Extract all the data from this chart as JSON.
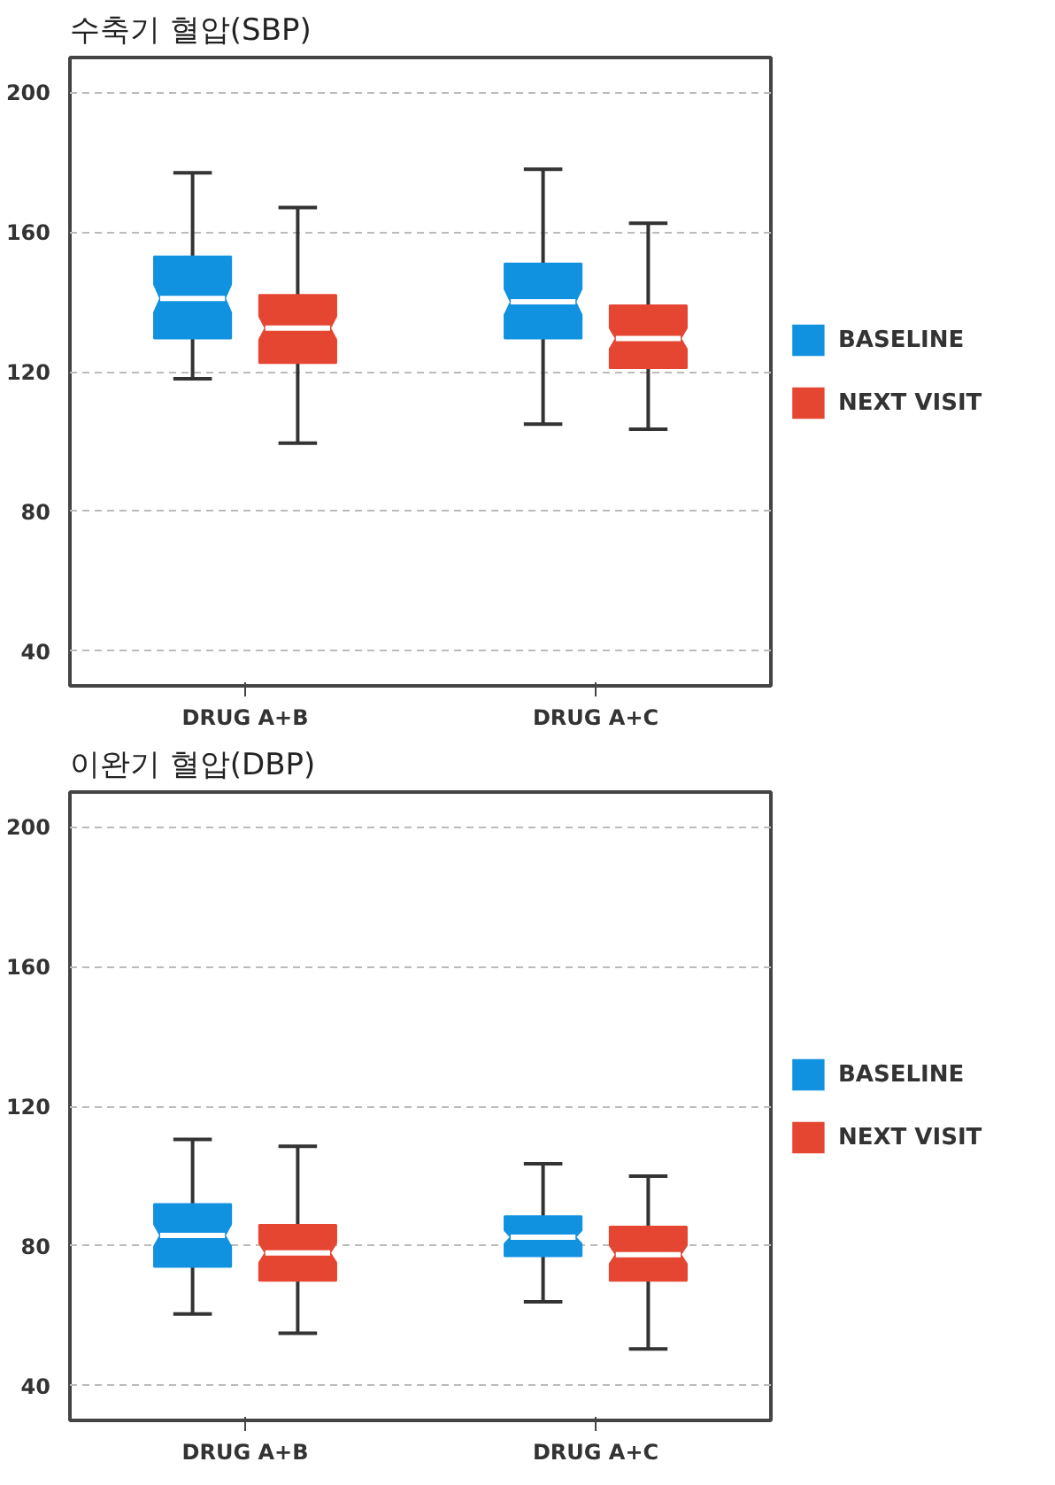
{
  "chart_data": [
    {
      "type": "box",
      "title": "수축기 혈압(SBP)",
      "categories": [
        "DRUG A+B",
        "DRUG A+C"
      ],
      "ylim": [
        30,
        210
      ],
      "yticks": [
        40,
        80,
        120,
        160,
        200
      ],
      "grid": "y",
      "legend": "right",
      "series": [
        {
          "name": "BASELINE",
          "color": "#1192e0",
          "boxes": [
            {
              "low": 118,
              "q1": 129.5,
              "median": 141,
              "q3": 153,
              "high": 177
            },
            {
              "low": 105,
              "q1": 129.5,
              "median": 140,
              "q3": 151,
              "high": 178
            }
          ]
        },
        {
          "name": "NEXT VISIT",
          "color": "#e54632",
          "boxes": [
            {
              "low": 99.5,
              "q1": 122.5,
              "median": 132.5,
              "q3": 142,
              "high": 167
            },
            {
              "low": 103.5,
              "q1": 121,
              "median": 129.5,
              "q3": 139,
              "high": 162.5
            }
          ]
        }
      ]
    },
    {
      "type": "box",
      "title": "이완기 혈압(DBP)",
      "categories": [
        "DRUG A+B",
        "DRUG A+C"
      ],
      "ylim": [
        30,
        210
      ],
      "yticks": [
        40,
        80,
        120,
        160,
        200
      ],
      "grid": "y",
      "legend": "right",
      "series": [
        {
          "name": "BASELINE",
          "color": "#1192e0",
          "boxes": [
            {
              "low": 60.5,
              "q1": 74,
              "median": 83,
              "q3": 92,
              "high": 110.5
            },
            {
              "low": 64,
              "q1": 77,
              "median": 82.5,
              "q3": 88.5,
              "high": 103.5
            }
          ]
        },
        {
          "name": "NEXT VISIT",
          "color": "#e54632",
          "boxes": [
            {
              "low": 55,
              "q1": 70,
              "median": 78,
              "q3": 86,
              "high": 108.5
            },
            {
              "low": 50.5,
              "q1": 70,
              "median": 77.5,
              "q3": 85.5,
              "high": 100
            }
          ]
        }
      ]
    }
  ]
}
